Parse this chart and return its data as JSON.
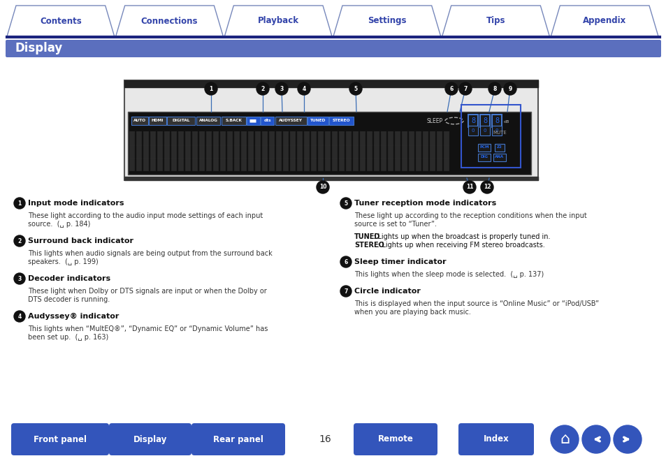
{
  "tab_labels": [
    "Contents",
    "Connections",
    "Playback",
    "Settings",
    "Tips",
    "Appendix"
  ],
  "tab_text_color": "#3344aa",
  "tab_border_color": "#7788bb",
  "nav_line_color": "#1a237e",
  "section_title": "Display",
  "section_bg": "#5b6fbe",
  "section_text_color": "#ffffff",
  "callout_line_color": "#3a6db5",
  "btn_color": "#3355bb",
  "page_number": "16",
  "left_items": [
    {
      "num": "1",
      "title": "Input mode indicators",
      "lines": [
        "These light according to the audio input mode settings of each input",
        "source.  (␣ p. 184)"
      ]
    },
    {
      "num": "2",
      "title": "Surround back indicator",
      "lines": [
        "This lights when audio signals are being output from the surround back",
        "speakers.  (␣ p. 199)"
      ]
    },
    {
      "num": "3",
      "title": "Decoder indicators",
      "lines": [
        "These light when Dolby or DTS signals are input or when the Dolby or",
        "DTS decoder is running."
      ]
    },
    {
      "num": "4",
      "title": "Audyssey® indicator",
      "lines": [
        "This lights when “MultEQ®”, “Dynamic EQ” or “Dynamic Volume” has",
        "been set up.  (␣ p. 163)"
      ]
    }
  ],
  "right_items": [
    {
      "num": "5",
      "title": "Tuner reception mode indicators",
      "lines": [
        "These light up according to the reception conditions when the input",
        "source is set to “Tuner”.",
        "",
        "TUNED|: Lights up when the broadcast is properly tuned in.",
        "STEREO|: Lights up when receiving FM stereo broadcasts."
      ]
    },
    {
      "num": "6",
      "title": "Sleep timer indicator",
      "lines": [
        "This lights when the sleep mode is selected.  (␣ p. 137)"
      ]
    },
    {
      "num": "7",
      "title": "Circle indicator",
      "lines": [
        "This is displayed when the input source is “Online Music” or “iPod/USB”",
        "when you are playing back music."
      ]
    }
  ],
  "bottom_buttons": [
    "Front panel",
    "Display",
    "Rear panel",
    "Remote",
    "Index"
  ]
}
